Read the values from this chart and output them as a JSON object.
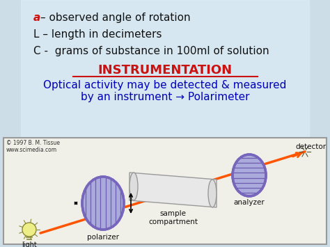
{
  "bg_color": "#ccdde8",
  "title_text": "INSTRUMENTATION",
  "title_color": "#cc1111",
  "line1_a_color": "#cc1111",
  "line1_rest": "– observed angle of rotation",
  "line2": "L – length in decimeters",
  "line3": "C -  grams of substance in 100ml of solution",
  "body_text_color": "#111111",
  "subtitle": "Optical activity may be detected & measured\nby an instrument → Polarimeter",
  "subtitle_color": "#0000bb",
  "copyright": "© 1997 B. M. Tissue\nwww.scimedia.com",
  "copyright_color": "#333333",
  "polarizer_face": "#aaaadd",
  "polarizer_edge": "#7766bb",
  "polarizer_lines": "#6655aa",
  "analyzer_face": "#aaaadd",
  "analyzer_edge": "#7766bb",
  "analyzer_lines": "#6655aa",
  "beam_color": "#ff5500",
  "label_color": "#111111",
  "tube_face": "#e8e8e8",
  "tube_edge": "#999999",
  "diag_face": "#f0f0e8",
  "diag_edge": "#999999",
  "bulb_face": "#eeee88",
  "bulb_edge": "#888833"
}
